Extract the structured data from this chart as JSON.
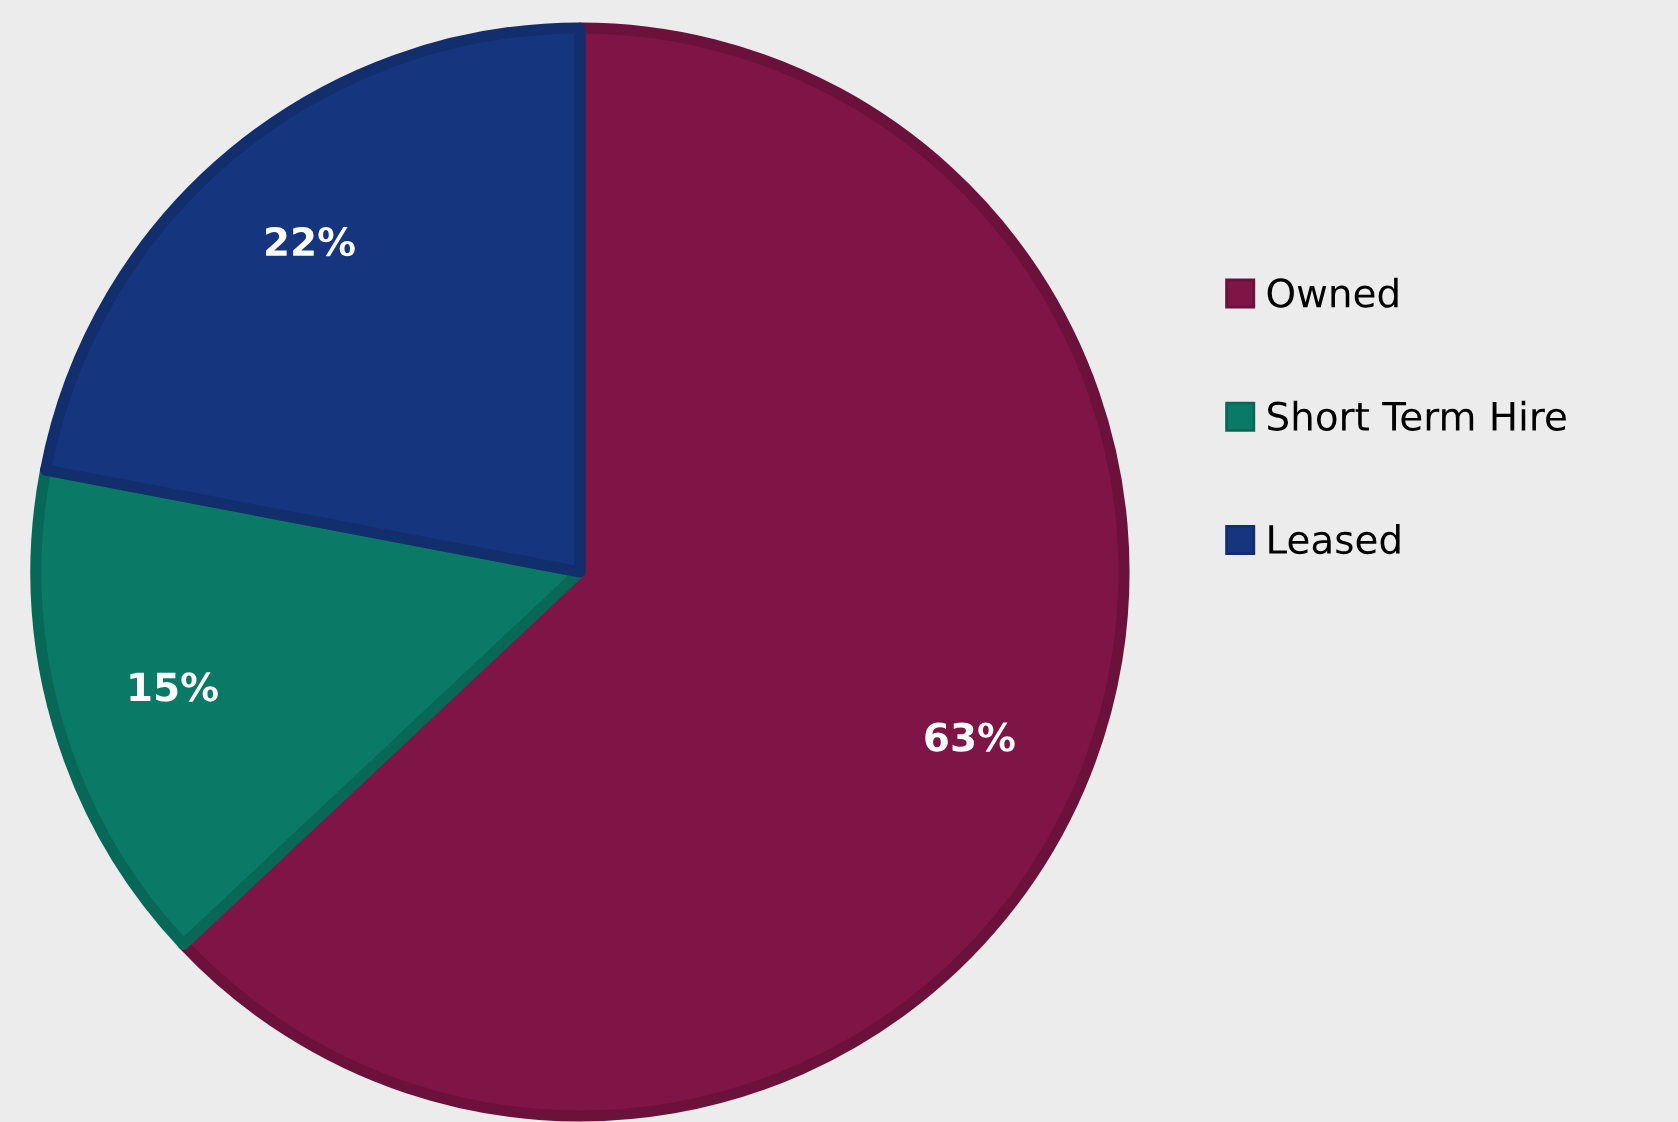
{
  "chart_data": {
    "type": "pie",
    "categories": [
      "Owned",
      "Short Term Hire",
      "Leased"
    ],
    "values": [
      63,
      15,
      22
    ],
    "colors": [
      "#7f1446",
      "#0a7a66",
      "#15367f"
    ],
    "value_labels": [
      "63%",
      "15%",
      "22%"
    ],
    "legend": "right"
  }
}
